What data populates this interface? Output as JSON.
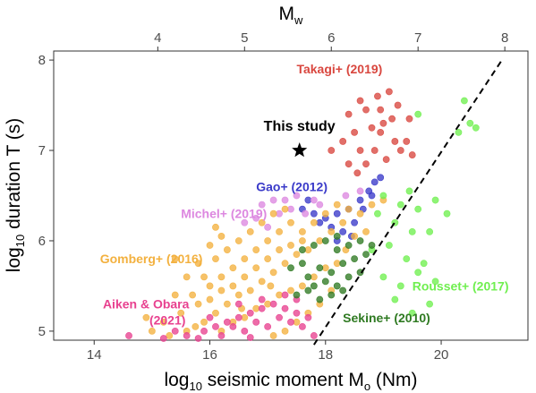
{
  "chart_data": {
    "type": "scatter",
    "xlabel": {
      "pre": "log",
      "sub1": "10",
      "mid": " seismic moment M",
      "sub2": "o",
      "post": " (Nm)"
    },
    "ylabel": {
      "pre": "log",
      "sub1": "10",
      "post": " duration T (s)"
    },
    "top_axis_label": {
      "main": "M",
      "sub": "w"
    },
    "xlim": [
      13.3,
      21.5
    ],
    "ylim": [
      4.9,
      8.1
    ],
    "x_ticks": [
      "14",
      "16",
      "18",
      "20"
    ],
    "y_ticks": [
      "5",
      "6",
      "7",
      "8"
    ],
    "top_ticks": [
      "4",
      "5",
      "6",
      "7",
      "8"
    ],
    "reference_line": {
      "style": "dashed",
      "color": "#000000",
      "points": [
        [
          17.8,
          4.85
        ],
        [
          21.05,
          8.0
        ]
      ]
    },
    "this_study": {
      "label": "This study",
      "x": 17.55,
      "y": 7.0,
      "marker": "star",
      "color": "#000000"
    },
    "series": [
      {
        "name": "Takagi+ (2019)",
        "color": "#d9473f",
        "label_pos": [
          17.5,
          7.85
        ],
        "points": [
          [
            18.6,
            7.55
          ],
          [
            18.9,
            7.6
          ],
          [
            19.1,
            7.65
          ],
          [
            18.4,
            7.4
          ],
          [
            18.7,
            7.45
          ],
          [
            18.95,
            7.45
          ],
          [
            19.25,
            7.5
          ],
          [
            18.5,
            7.2
          ],
          [
            18.8,
            7.25
          ],
          [
            19.0,
            7.3
          ],
          [
            19.2,
            7.1
          ],
          [
            18.3,
            7.1
          ],
          [
            18.6,
            7.0
          ],
          [
            18.85,
            7.0
          ],
          [
            19.3,
            7.0
          ],
          [
            18.7,
            6.85
          ],
          [
            19.05,
            6.9
          ],
          [
            19.4,
            7.1
          ],
          [
            19.45,
            7.35
          ],
          [
            18.1,
            7.0
          ],
          [
            18.55,
            6.75
          ],
          [
            19.15,
            7.35
          ],
          [
            18.95,
            7.2
          ],
          [
            19.5,
            6.95
          ],
          [
            18.4,
            6.85
          ]
        ]
      },
      {
        "name": "Gao+ (2012)",
        "color": "#3a3ac9",
        "label_pos": [
          16.8,
          6.55
        ],
        "points": [
          [
            17.6,
            6.35
          ],
          [
            17.8,
            6.3
          ],
          [
            18.0,
            6.25
          ],
          [
            18.2,
            6.3
          ],
          [
            18.4,
            6.35
          ],
          [
            18.6,
            6.45
          ],
          [
            18.75,
            6.55
          ],
          [
            18.85,
            6.65
          ],
          [
            18.95,
            6.7
          ],
          [
            17.9,
            6.2
          ],
          [
            18.1,
            6.15
          ],
          [
            18.3,
            6.1
          ],
          [
            18.5,
            6.2
          ],
          [
            17.7,
            6.45
          ],
          [
            18.65,
            6.35
          ],
          [
            18.8,
            6.5
          ],
          [
            18.2,
            6.0
          ],
          [
            18.45,
            6.05
          ]
        ]
      },
      {
        "name": "Michel+ (2019)",
        "color": "#dd88e0",
        "label_pos": [
          15.5,
          6.25
        ],
        "points": [
          [
            16.9,
            6.4
          ],
          [
            17.1,
            6.45
          ],
          [
            17.3,
            6.45
          ],
          [
            17.5,
            6.5
          ],
          [
            17.8,
            6.45
          ],
          [
            16.8,
            6.25
          ],
          [
            17.4,
            6.35
          ],
          [
            17.9,
            6.4
          ],
          [
            16.6,
            6.2
          ],
          [
            17.2,
            6.3
          ],
          [
            18.35,
            6.5
          ],
          [
            18.6,
            6.55
          ],
          [
            17.0,
            6.15
          ],
          [
            17.65,
            6.3
          ]
        ]
      },
      {
        "name": "Gomberg+ (2016)",
        "color": "#f3b13f",
        "label_pos": [
          14.1,
          5.75
        ],
        "points": [
          [
            15.3,
            4.95
          ],
          [
            15.6,
            5.0
          ],
          [
            15.9,
            5.1
          ],
          [
            16.1,
            5.2
          ],
          [
            16.3,
            5.3
          ],
          [
            16.5,
            5.4
          ],
          [
            16.7,
            5.45
          ],
          [
            16.9,
            5.55
          ],
          [
            17.1,
            5.65
          ],
          [
            17.3,
            5.75
          ],
          [
            17.5,
            5.85
          ],
          [
            17.7,
            5.9
          ],
          [
            17.9,
            6.0
          ],
          [
            18.1,
            6.1
          ],
          [
            18.3,
            6.2
          ],
          [
            15.8,
            5.3
          ],
          [
            16.0,
            5.5
          ],
          [
            16.2,
            5.6
          ],
          [
            16.4,
            5.7
          ],
          [
            16.6,
            5.8
          ],
          [
            16.8,
            5.9
          ],
          [
            17.0,
            6.0
          ],
          [
            17.2,
            6.1
          ],
          [
            17.4,
            6.2
          ],
          [
            16.2,
            5.0
          ],
          [
            16.4,
            5.1
          ],
          [
            16.6,
            5.15
          ],
          [
            16.8,
            5.25
          ],
          [
            17.0,
            5.3
          ],
          [
            17.2,
            5.4
          ],
          [
            17.4,
            5.45
          ],
          [
            17.6,
            5.5
          ],
          [
            17.8,
            5.6
          ],
          [
            18.0,
            5.7
          ],
          [
            18.2,
            5.75
          ],
          [
            15.5,
            5.2
          ],
          [
            15.7,
            5.4
          ],
          [
            15.9,
            5.6
          ],
          [
            16.1,
            5.8
          ],
          [
            16.3,
            5.9
          ],
          [
            16.5,
            6.0
          ],
          [
            16.7,
            6.1
          ],
          [
            16.9,
            6.2
          ],
          [
            17.1,
            6.3
          ],
          [
            17.3,
            6.35
          ],
          [
            15.4,
            5.4
          ],
          [
            15.6,
            5.6
          ],
          [
            15.8,
            5.75
          ],
          [
            16.0,
            5.95
          ],
          [
            16.2,
            6.05
          ],
          [
            17.6,
            6.1
          ],
          [
            17.8,
            6.2
          ],
          [
            18.0,
            6.3
          ],
          [
            18.2,
            6.4
          ],
          [
            18.4,
            6.35
          ],
          [
            18.6,
            6.3
          ],
          [
            18.8,
            6.4
          ],
          [
            19.0,
            6.45
          ],
          [
            18.1,
            5.45
          ],
          [
            17.9,
            5.3
          ],
          [
            17.7,
            5.2
          ],
          [
            17.5,
            5.1
          ],
          [
            17.3,
            5.0
          ],
          [
            17.1,
            4.95
          ],
          [
            15.2,
            5.1
          ],
          [
            15.0,
            5.0
          ],
          [
            14.9,
            5.15
          ],
          [
            16.4,
            5.5
          ],
          [
            16.6,
            5.6
          ],
          [
            16.8,
            5.7
          ],
          [
            17.0,
            5.8
          ],
          [
            17.2,
            5.9
          ],
          [
            17.4,
            5.95
          ],
          [
            17.6,
            6.0
          ],
          [
            16.0,
            5.35
          ],
          [
            16.2,
            5.45
          ],
          [
            15.4,
            5.8
          ],
          [
            16.1,
            6.15
          ],
          [
            18.5,
            6.05
          ],
          [
            18.7,
            6.1
          ],
          [
            17.05,
            5.5
          ],
          [
            16.55,
            5.25
          ],
          [
            15.75,
            5.05
          ],
          [
            18.35,
            5.9
          ]
        ]
      },
      {
        "name": "Aiken & Obara\n(2021)",
        "color": "#e8418f",
        "label_pos": [
          14.15,
          5.25
        ],
        "points": [
          [
            15.2,
            4.92
          ],
          [
            15.6,
            4.95
          ],
          [
            15.9,
            5.0
          ],
          [
            16.1,
            5.05
          ],
          [
            16.3,
            5.1
          ],
          [
            16.5,
            5.15
          ],
          [
            16.7,
            5.2
          ],
          [
            16.9,
            5.25
          ],
          [
            17.1,
            5.3
          ],
          [
            17.3,
            5.25
          ],
          [
            17.5,
            5.2
          ],
          [
            17.7,
            5.15
          ],
          [
            15.8,
            4.92
          ],
          [
            16.2,
            4.95
          ],
          [
            16.6,
            5.0
          ],
          [
            17.0,
            5.05
          ],
          [
            17.4,
            5.1
          ],
          [
            16.4,
            5.05
          ],
          [
            16.8,
            5.1
          ],
          [
            17.2,
            5.15
          ],
          [
            17.6,
            5.05
          ],
          [
            16.0,
            5.15
          ],
          [
            16.5,
            5.3
          ],
          [
            16.9,
            5.35
          ],
          [
            17.3,
            5.4
          ],
          [
            17.8,
            4.95
          ],
          [
            15.4,
            5.0
          ],
          [
            14.6,
            4.95
          ],
          [
            16.7,
            4.93
          ],
          [
            17.5,
            5.35
          ]
        ]
      },
      {
        "name": "Rousset+ (2017)",
        "color": "#70ef50",
        "label_pos": [
          19.5,
          5.45
        ],
        "points": [
          [
            19.6,
            7.4
          ],
          [
            20.4,
            7.55
          ],
          [
            20.5,
            7.3
          ],
          [
            20.3,
            7.2
          ],
          [
            20.6,
            7.25
          ],
          [
            19.0,
            6.5
          ],
          [
            19.3,
            6.4
          ],
          [
            19.6,
            6.35
          ],
          [
            19.9,
            6.45
          ],
          [
            19.2,
            6.2
          ],
          [
            19.5,
            6.1
          ],
          [
            19.1,
            5.95
          ],
          [
            19.4,
            5.8
          ],
          [
            19.7,
            5.75
          ],
          [
            19.0,
            5.6
          ],
          [
            19.3,
            5.5
          ],
          [
            19.6,
            5.65
          ],
          [
            19.9,
            5.55
          ],
          [
            20.1,
            6.3
          ],
          [
            19.8,
            6.1
          ],
          [
            18.9,
            6.3
          ],
          [
            19.2,
            5.35
          ],
          [
            19.5,
            5.2
          ],
          [
            19.8,
            5.3
          ],
          [
            19.45,
            6.55
          ],
          [
            18.8,
            5.9
          ]
        ]
      },
      {
        "name": "Sekine+ (2010)",
        "color": "#2f7a22",
        "label_pos": [
          18.3,
          5.1
        ],
        "points": [
          [
            17.7,
            5.6
          ],
          [
            17.9,
            5.7
          ],
          [
            18.1,
            5.65
          ],
          [
            18.3,
            5.75
          ],
          [
            18.5,
            5.8
          ],
          [
            18.7,
            5.85
          ],
          [
            17.8,
            5.5
          ],
          [
            18.0,
            5.55
          ],
          [
            18.2,
            5.5
          ],
          [
            18.4,
            5.6
          ],
          [
            18.6,
            5.65
          ],
          [
            17.5,
            5.4
          ],
          [
            17.7,
            5.45
          ],
          [
            17.9,
            5.35
          ],
          [
            18.1,
            5.4
          ],
          [
            18.3,
            5.45
          ],
          [
            17.6,
            5.9
          ],
          [
            17.8,
            5.95
          ],
          [
            18.0,
            6.0
          ],
          [
            18.2,
            5.9
          ],
          [
            18.4,
            5.95
          ],
          [
            18.6,
            6.0
          ],
          [
            17.4,
            5.7
          ],
          [
            17.6,
            5.75
          ],
          [
            18.8,
            5.95
          ],
          [
            18.2,
            6.05
          ]
        ]
      }
    ]
  }
}
